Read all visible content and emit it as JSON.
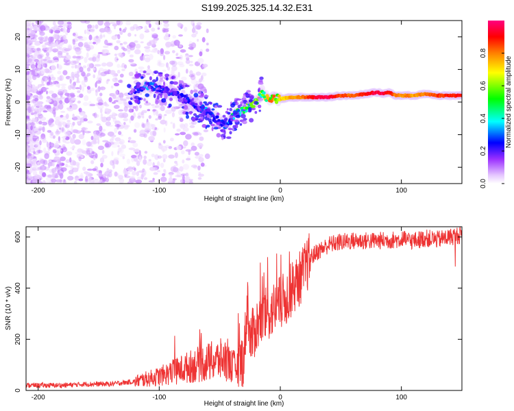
{
  "figure_title": "S199.2025.325.14.32.E31",
  "chart_data": [
    {
      "type": "heatmap",
      "title": "S199.2025.325.14.32.E31",
      "xlabel": "Height of straight line (km)",
      "ylabel": "Frequency (Hz)",
      "xlim": [
        -210,
        150
      ],
      "ylim": [
        -25,
        25
      ],
      "x_ticks": [
        -200,
        -100,
        0,
        100
      ],
      "y_ticks": [
        -20,
        -10,
        0,
        10,
        20
      ],
      "ridge_track": {
        "x": [
          -120,
          -110,
          -100,
          -90,
          -80,
          -70,
          -60,
          -50,
          -45,
          -42,
          -38,
          -30,
          -20,
          -15,
          -10,
          0,
          10,
          20,
          30,
          40,
          50,
          60,
          70,
          80,
          85,
          90,
          95,
          100,
          105,
          110,
          120,
          130,
          150
        ],
        "y": [
          4,
          5,
          4,
          3,
          1,
          -1,
          -3,
          -6,
          -7,
          -6,
          -4,
          -2,
          0,
          3,
          1,
          1,
          1.5,
          1.5,
          1.5,
          1.5,
          2,
          2,
          2.5,
          3,
          2.5,
          3,
          2,
          2,
          2,
          2,
          2.5,
          2,
          2
        ],
        "amplitude": [
          0.3,
          0.35,
          0.3,
          0.3,
          0.3,
          0.3,
          0.35,
          0.3,
          0.35,
          0.4,
          0.45,
          0.5,
          0.55,
          0.6,
          0.65,
          0.7,
          0.75,
          0.8,
          0.95,
          0.95,
          0.85,
          0.8,
          0.9,
          0.95,
          0.95,
          0.9,
          0.8,
          0.75,
          0.8,
          0.75,
          0.8,
          0.85,
          0.9
        ]
      },
      "colorbar": {
        "label": "Normalized spectral amplitude",
        "range": [
          0,
          1
        ],
        "ticks": [
          "0.0",
          "0.2",
          "0.4",
          "0.6",
          "0.8"
        ],
        "colormap": [
          "#ffffff",
          "#e6c8ff",
          "#9b30ff",
          "#0000ff",
          "#00ffff",
          "#00ff00",
          "#ffff00",
          "#ff8000",
          "#ff0000",
          "#ff0080"
        ]
      }
    },
    {
      "type": "line",
      "xlabel": "Height of straight line (km)",
      "ylabel": "SNR (10 * v/v)",
      "xlim": [
        -210,
        150
      ],
      "ylim": [
        0,
        640
      ],
      "x_ticks": [
        -200,
        -100,
        0,
        100
      ],
      "y_ticks": [
        0,
        200,
        400,
        600
      ],
      "line_color": "#ee3333",
      "series": [
        {
          "name": "SNR",
          "x": [
            -210,
            -180,
            -160,
            -140,
            -120,
            -110,
            -100,
            -90,
            -80,
            -70,
            -60,
            -50,
            -45,
            -40,
            -35,
            -30,
            -27,
            -25,
            -20,
            -15,
            -10,
            -5,
            0,
            5,
            10,
            15,
            20,
            25,
            30,
            40,
            50,
            60,
            80,
            100,
            110,
            120,
            130,
            140,
            150
          ],
          "y": [
            20,
            20,
            25,
            25,
            35,
            45,
            55,
            70,
            85,
            100,
            110,
            120,
            120,
            95,
            90,
            130,
            360,
            190,
            250,
            280,
            300,
            320,
            340,
            360,
            400,
            430,
            470,
            520,
            540,
            570,
            580,
            585,
            585,
            590,
            585,
            595,
            590,
            600,
            610
          ]
        }
      ]
    }
  ]
}
